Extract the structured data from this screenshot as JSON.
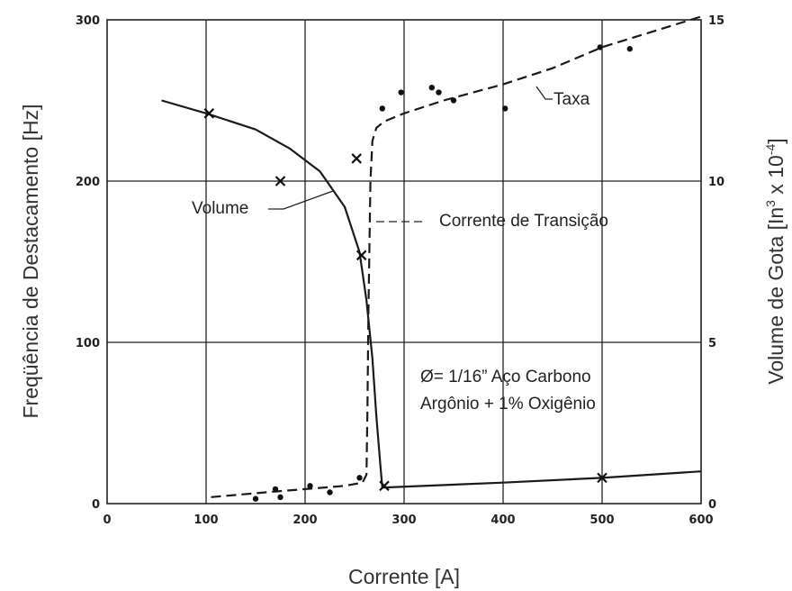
{
  "chart_data": {
    "type": "line",
    "xlabel": "Corrente [A]",
    "ylabel_left": "Freqüência de Destacamento [Hz]",
    "ylabel_right": "Volume de Gota [In³ x 10⁻⁴]",
    "x_ticks": [
      "0",
      "100",
      "200",
      "300",
      "400",
      "500",
      "600"
    ],
    "y_left_ticks": [
      "0",
      "100",
      "200",
      "300"
    ],
    "y_right_ticks": [
      "0",
      "5",
      "10",
      "15"
    ],
    "xlim": [
      0,
      600
    ],
    "ylim_left": [
      0,
      300
    ],
    "ylim_right": [
      0,
      15
    ],
    "grid": true,
    "series": [
      {
        "name": "Taxa",
        "axis": "left",
        "style": "dashed",
        "curve": [
          [
            105,
            4
          ],
          [
            160,
            7
          ],
          [
            200,
            9
          ],
          [
            240,
            11
          ],
          [
            258,
            13
          ],
          [
            262,
            18
          ],
          [
            263,
            60
          ],
          [
            264,
            120
          ],
          [
            265,
            160
          ],
          [
            266,
            200
          ],
          [
            268,
            225
          ],
          [
            272,
            233
          ],
          [
            280,
            237
          ],
          [
            300,
            242
          ],
          [
            340,
            250
          ],
          [
            400,
            260
          ],
          [
            450,
            270
          ],
          [
            500,
            283
          ],
          [
            600,
            302
          ]
        ],
        "points": [
          [
            150,
            3
          ],
          [
            170,
            9
          ],
          [
            175,
            4
          ],
          [
            205,
            11
          ],
          [
            225,
            7
          ],
          [
            255,
            16
          ],
          [
            278,
            245
          ],
          [
            297,
            255
          ],
          [
            328,
            258
          ],
          [
            335,
            255
          ],
          [
            350,
            250
          ],
          [
            402,
            245
          ],
          [
            498,
            283
          ],
          [
            528,
            282
          ]
        ]
      },
      {
        "name": "Volume",
        "axis": "right",
        "style": "solid",
        "curve": [
          [
            55,
            12.5
          ],
          [
            100,
            12.1
          ],
          [
            150,
            11.6
          ],
          [
            185,
            11.0
          ],
          [
            215,
            10.3
          ],
          [
            240,
            9.2
          ],
          [
            255,
            7.8
          ],
          [
            262,
            6.3
          ],
          [
            268,
            4.5
          ],
          [
            272,
            2.7
          ],
          [
            276,
            1.2
          ],
          [
            278,
            0.5
          ],
          [
            280,
            0.5
          ],
          [
            400,
            0.65
          ],
          [
            500,
            0.8
          ],
          [
            600,
            1.0
          ]
        ],
        "points": [
          [
            103,
            12.1
          ],
          [
            175,
            10.0
          ],
          [
            252,
            10.7
          ],
          [
            257,
            7.7
          ],
          [
            280,
            0.55
          ],
          [
            500,
            0.8
          ]
        ]
      }
    ],
    "annotations": {
      "taxa": "Taxa",
      "volume": "Volume",
      "transicao": "Corrente de Transição",
      "material_line1": "Ø= 1/16” Aço Carbono",
      "material_line2": "Argônio + 1% Oxigênio"
    }
  }
}
